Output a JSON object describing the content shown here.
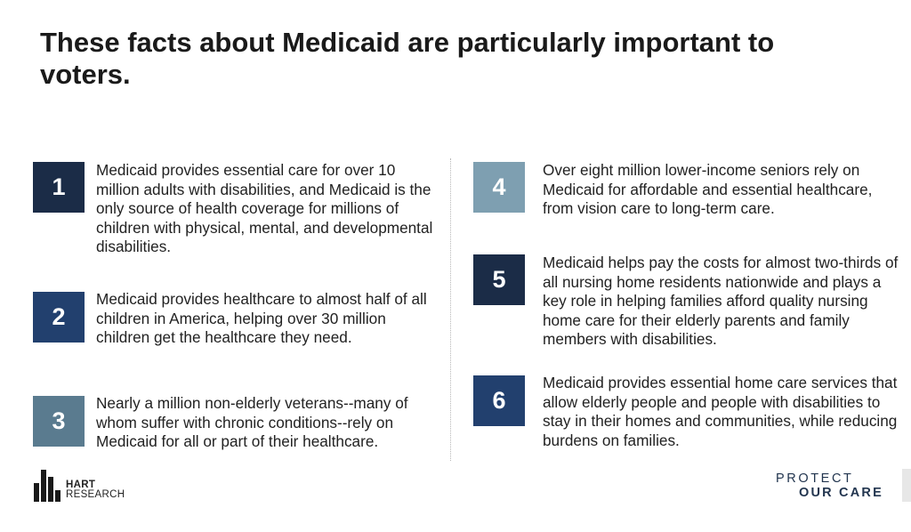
{
  "title": "These facts about Medicaid are particularly important to voters.",
  "facts": [
    {
      "number": "1",
      "color": "#1b2c47",
      "text": "Medicaid provides essential care for over 10 million adults with disabilities, and Medicaid is the only source of health coverage for millions of children with physical, mental, and developmental disabilities."
    },
    {
      "number": "2",
      "color": "#22406e",
      "text": "Medicaid provides healthcare to almost half of all children in America, helping over 30 million children get the healthcare they need."
    },
    {
      "number": "3",
      "color": "#5a7b8f",
      "text": "Nearly a million non-elderly veterans--many of whom suffer with chronic conditions--rely on Medicaid for all or part of their healthcare."
    },
    {
      "number": "4",
      "color": "#7e9fb1",
      "text": "Over eight million lower-income seniors rely on Medicaid for affordable and essential healthcare, from vision care to long-term care."
    },
    {
      "number": "5",
      "color": "#1b2c47",
      "text": "Medicaid helps pay the costs for almost two-thirds of all nursing home residents nationwide and plays a key role in helping families afford quality nursing home care for their elderly parents and family members with disabilities."
    },
    {
      "number": "6",
      "color": "#22406e",
      "text": "Medicaid provides essential home care services that allow elderly people and people with disabilities to stay in their homes and communities, while reducing burdens on families."
    }
  ],
  "logos": {
    "hart": {
      "line1": "HART",
      "line2": "RESEARCH"
    },
    "protect": {
      "line1": "PROTECT",
      "line2": "OUR CARE"
    }
  }
}
